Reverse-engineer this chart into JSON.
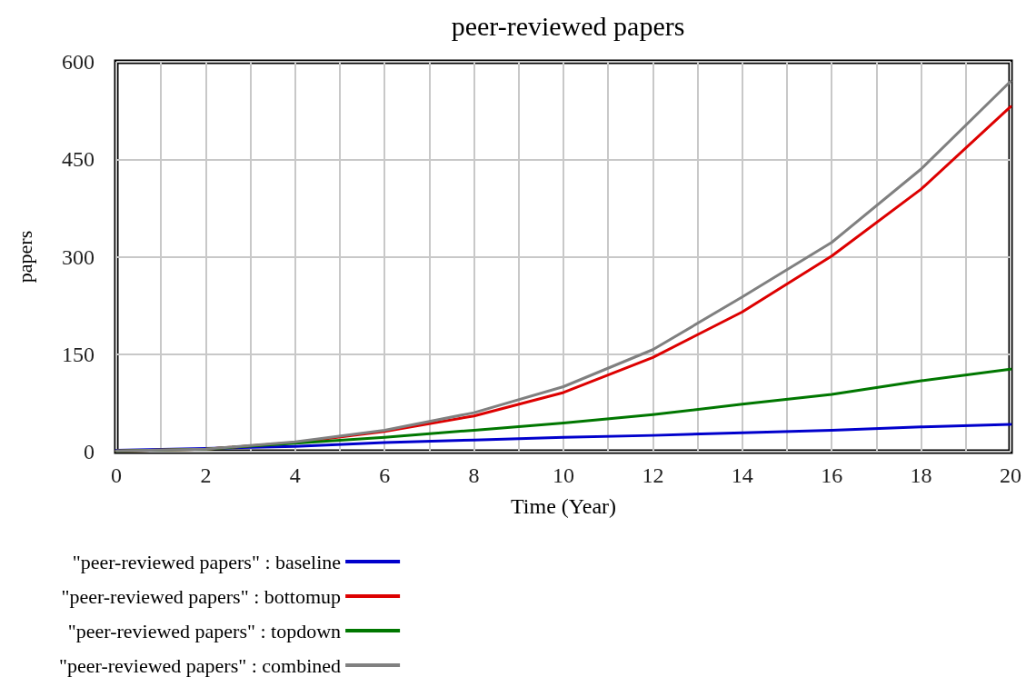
{
  "chart_data": {
    "type": "line",
    "title": "peer-reviewed papers",
    "xlabel": "Time (Year)",
    "ylabel": "papers",
    "x": [
      0,
      2,
      4,
      6,
      8,
      10,
      12,
      14,
      16,
      18,
      20
    ],
    "series": [
      {
        "name": "\"peer-reviewed papers\" : baseline",
        "color": "#0000cc",
        "values": [
          2,
          5,
          8,
          14,
          18,
          22,
          25,
          29,
          33,
          38,
          42
        ]
      },
      {
        "name": "\"peer-reviewed papers\" : bottomup",
        "color": "#dd0000",
        "values": [
          1,
          4,
          14,
          31,
          55,
          91,
          145,
          215,
          301,
          404,
          531
        ]
      },
      {
        "name": "\"peer-reviewed papers\" : topdown",
        "color": "#007700",
        "values": [
          1,
          4,
          13,
          22,
          33,
          44,
          57,
          73,
          88,
          109,
          127
        ]
      },
      {
        "name": "\"peer-reviewed papers\" : combined",
        "color": "#808080",
        "values": [
          1,
          4,
          15,
          33,
          60,
          100,
          157,
          238,
          322,
          435,
          570
        ]
      }
    ],
    "xlim": [
      0,
      20
    ],
    "xticks": [
      0,
      {
        "value": 1,
        "label": null
      },
      2,
      {
        "value": 3,
        "label": null
      },
      4,
      {
        "value": 5,
        "label": null
      },
      6,
      {
        "value": 7,
        "label": null
      },
      8,
      {
        "value": 9,
        "label": null
      },
      10,
      {
        "value": 11,
        "label": null
      },
      12,
      {
        "value": 13,
        "label": null
      },
      14,
      {
        "value": 15,
        "label": null
      },
      16,
      {
        "value": 17,
        "label": null
      },
      18,
      {
        "value": 19,
        "label": null
      },
      20
    ],
    "ylim": [
      0,
      600
    ],
    "yticks": [
      0,
      150,
      300,
      450,
      600
    ],
    "grid": true,
    "legend": "bottom",
    "marker": "none",
    "line_style": "solid"
  }
}
